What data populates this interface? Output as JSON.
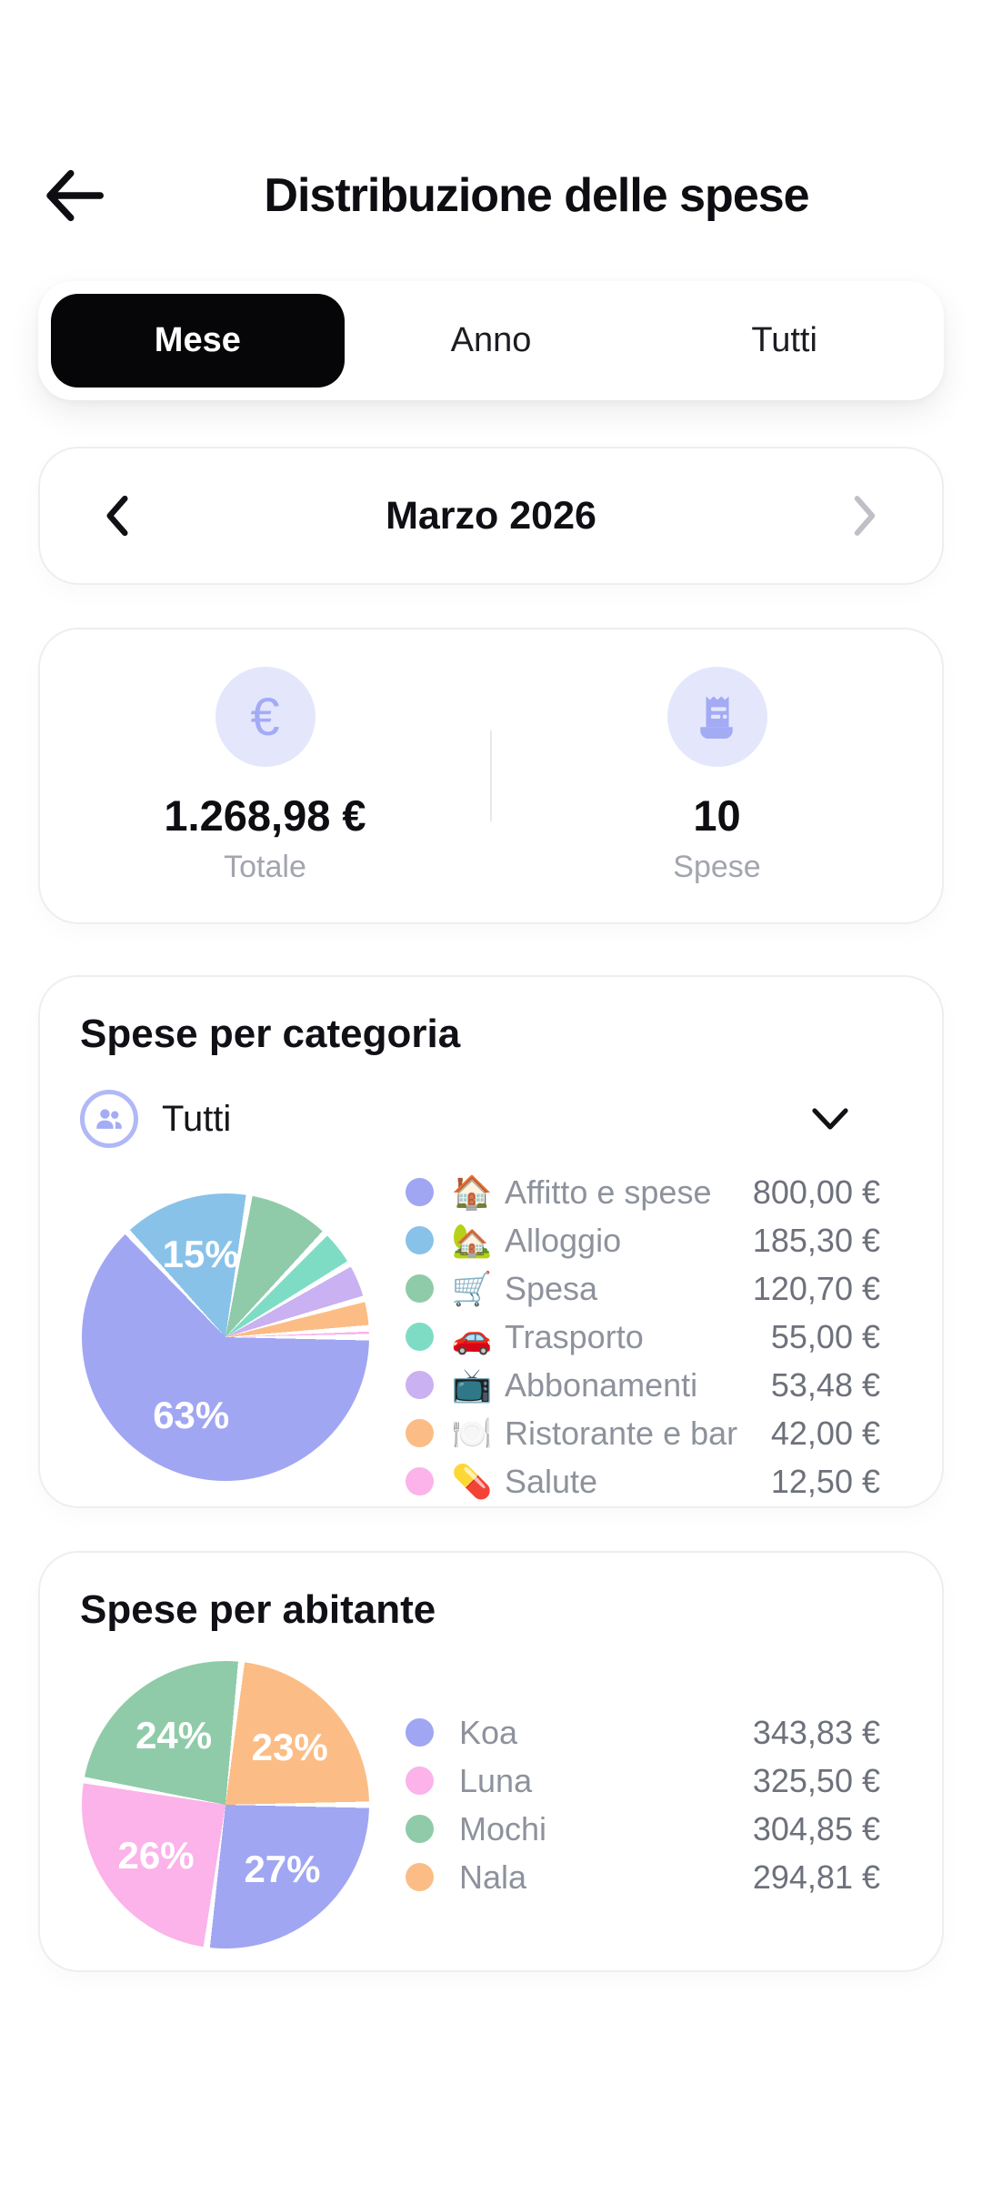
{
  "header": {
    "back_icon": "left-arrow",
    "title": "Distribuzione delle spese"
  },
  "tabs": [
    {
      "label": "Mese",
      "active": true
    },
    {
      "label": "Anno",
      "active": false
    },
    {
      "label": "Tutti",
      "active": false
    }
  ],
  "period": {
    "label": "Marzo 2026",
    "prev_icon": "chevron-left",
    "next_icon": "chevron-right"
  },
  "summary": {
    "total": {
      "icon": "euro",
      "glyph": "€",
      "value": "1.268,98 €",
      "label": "Totale"
    },
    "count": {
      "icon": "receipt",
      "value": "10",
      "label": "Spese"
    }
  },
  "category_section": {
    "title": "Spese per categoria",
    "filter_label": "Tutti",
    "filter_icon": "people-group",
    "dropdown_icon": "chevron-down"
  },
  "resident_section": {
    "title": "Spese per abitante"
  },
  "colors": {
    "accent_periwinkle": "#a0a6f2",
    "active_tab_bg": "#060608",
    "active_tab_text": "#ffffff",
    "icon_circle_bg": "#e4e7fc",
    "icon_circle_fg": "#a3abf5",
    "card_border": "#eeeef1",
    "legend_label_gray": "#8d929c",
    "legend_value_gray": "#6d717b"
  },
  "chart_data": [
    {
      "type": "pie",
      "title": "Spese per categoria",
      "legend_position": "right",
      "start_angle": "3-oclock",
      "direction": "clockwise",
      "slice_gap": true,
      "slices": [
        {
          "label": "Affitto e spese",
          "emoji": "🏠",
          "value": 800.0,
          "value_label": "800,00 €",
          "pct": 63.04,
          "pct_label": "63%",
          "show_pct": true,
          "color": "#a0a6f2"
        },
        {
          "label": "Alloggio",
          "emoji": "🏡",
          "value": 185.3,
          "value_label": "185,30 €",
          "pct": 14.6,
          "pct_label": "15%",
          "show_pct": true,
          "color": "#89c2e9"
        },
        {
          "label": "Spesa",
          "emoji": "🛒",
          "value": 120.7,
          "value_label": "120,70 €",
          "pct": 9.51,
          "show_pct": false,
          "color": "#8fcba9"
        },
        {
          "label": "Trasporto",
          "emoji": "🚗",
          "value": 55.0,
          "value_label": "55,00 €",
          "pct": 4.33,
          "show_pct": false,
          "color": "#7edcc5"
        },
        {
          "label": "Abbonamenti",
          "emoji": "📺",
          "value": 53.48,
          "value_label": "53,48 €",
          "pct": 4.21,
          "show_pct": false,
          "color": "#c9b1f2"
        },
        {
          "label": "Ristorante e bar",
          "emoji": "🍽️",
          "value": 42.0,
          "value_label": "42,00 €",
          "pct": 3.31,
          "show_pct": false,
          "color": "#fbbd85"
        },
        {
          "label": "Salute",
          "emoji": "💊",
          "value": 12.5,
          "value_label": "12,50 €",
          "pct": 0.99,
          "show_pct": false,
          "color": "#fbb3e9"
        }
      ]
    },
    {
      "type": "pie",
      "title": "Spese per abitante",
      "legend_position": "right",
      "start_angle": "3-oclock",
      "direction": "clockwise",
      "slice_gap": true,
      "slices": [
        {
          "label": "Koa",
          "value": 343.83,
          "value_label": "343,83 €",
          "pct": 27.09,
          "pct_label": "27%",
          "show_pct": true,
          "color": "#a0a6f2"
        },
        {
          "label": "Luna",
          "value": 325.5,
          "value_label": "325,50 €",
          "pct": 25.65,
          "pct_label": "26%",
          "show_pct": true,
          "color": "#fbb3e9"
        },
        {
          "label": "Mochi",
          "value": 304.85,
          "value_label": "304,85 €",
          "pct": 24.02,
          "pct_label": "24%",
          "show_pct": true,
          "color": "#8fcba9"
        },
        {
          "label": "Nala",
          "value": 294.81,
          "value_label": "294,81 €",
          "pct": 23.23,
          "pct_label": "23%",
          "show_pct": true,
          "color": "#fbbd85"
        }
      ]
    }
  ]
}
